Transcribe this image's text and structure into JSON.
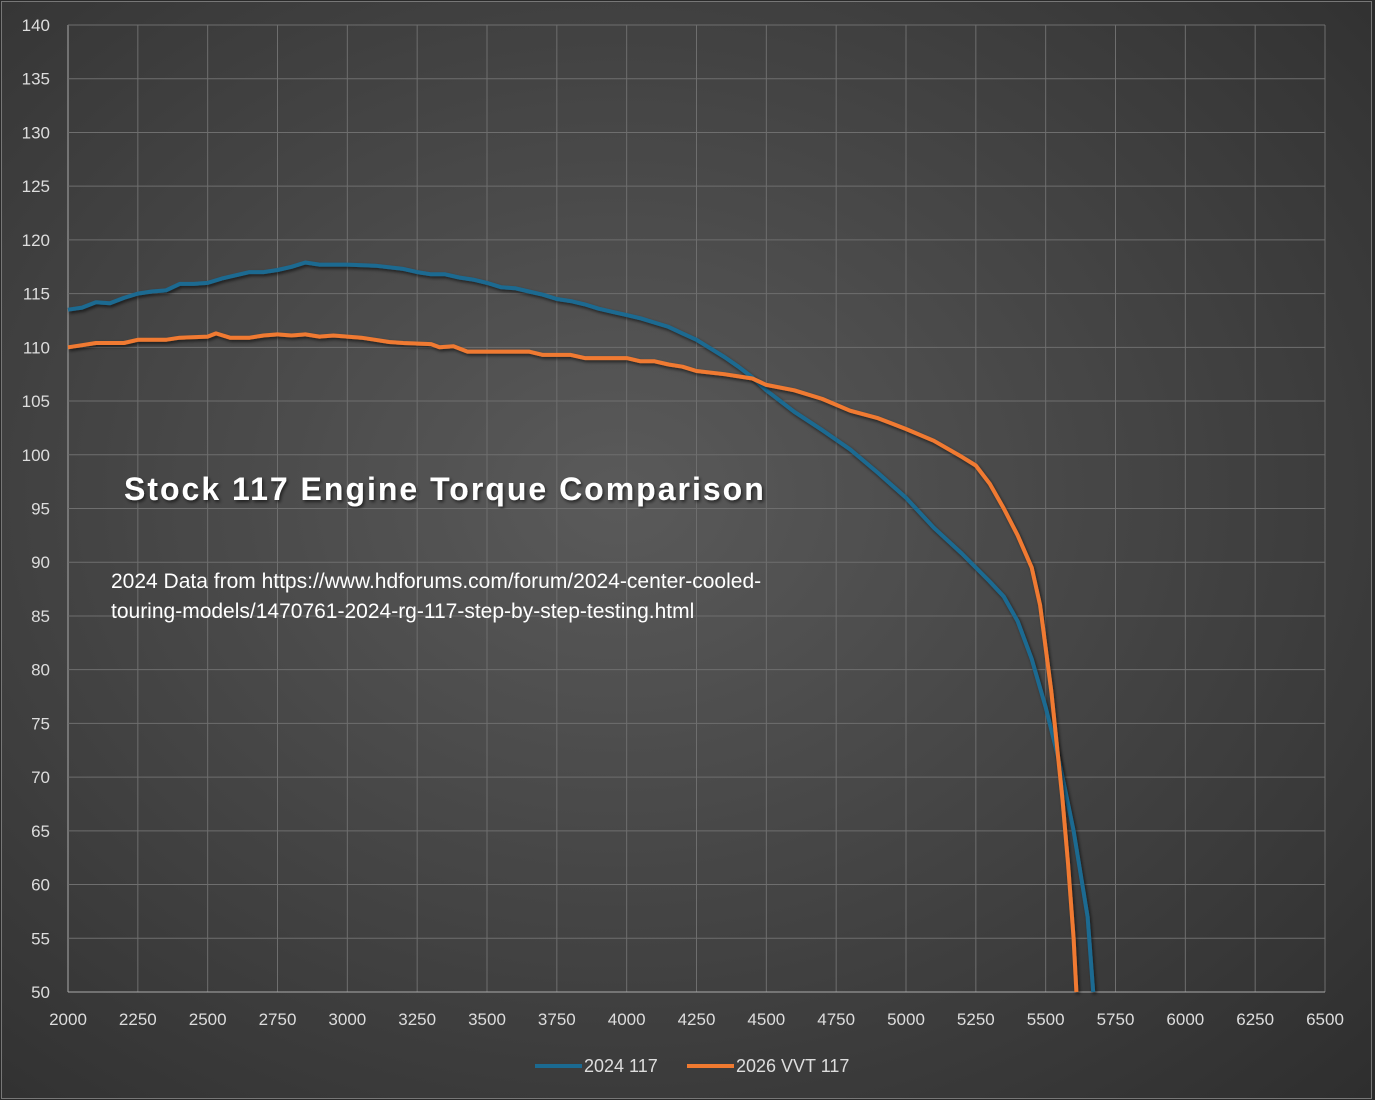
{
  "chart_data": {
    "type": "line",
    "title": "Stock 117 Engine Torque Comparison",
    "annotation": "2024 Data from https://www.hdforums.com/forum/2024-center-cooled-touring-models/1470761-2024-rg-117-step-by-step-testing.html",
    "annotation_lines": [
      "2024 Data from https://www.hdforums.com/forum/2024-center-cooled-",
      "touring-models/1470761-2024-rg-117-step-by-step-testing.html"
    ],
    "xlabel": "",
    "ylabel": "",
    "xlim": [
      2000,
      6500
    ],
    "ylim": [
      50,
      140
    ],
    "xticks": [
      2000,
      2250,
      2500,
      2750,
      3000,
      3250,
      3500,
      3750,
      4000,
      4250,
      4500,
      4750,
      5000,
      5250,
      5500,
      5750,
      6000,
      6250,
      6500
    ],
    "yticks": [
      50,
      55,
      60,
      65,
      70,
      75,
      80,
      85,
      90,
      95,
      100,
      105,
      110,
      115,
      120,
      125,
      130,
      135,
      140
    ],
    "grid": true,
    "legend": "bottom",
    "series": [
      {
        "name": "2024 117",
        "color": "#1b6a91",
        "x": [
          2000,
          2050,
          2100,
          2150,
          2200,
          2250,
          2300,
          2350,
          2400,
          2450,
          2500,
          2550,
          2600,
          2650,
          2700,
          2750,
          2800,
          2850,
          2900,
          3000,
          3100,
          3200,
          3250,
          3300,
          3350,
          3400,
          3450,
          3500,
          3550,
          3600,
          3650,
          3700,
          3750,
          3800,
          3850,
          3900,
          3950,
          4000,
          4050,
          4100,
          4150,
          4200,
          4250,
          4300,
          4350,
          4400,
          4450,
          4500,
          4600,
          4700,
          4800,
          4900,
          5000,
          5100,
          5200,
          5300,
          5350,
          5400,
          5450,
          5500,
          5550,
          5600,
          5650,
          5670
        ],
        "y": [
          113.5,
          113.7,
          114.2,
          114.1,
          114.6,
          115,
          115.2,
          115.3,
          115.9,
          115.9,
          116,
          116.4,
          116.7,
          117,
          117,
          117.2,
          117.5,
          117.9,
          117.7,
          117.7,
          117.6,
          117.3,
          117,
          116.8,
          116.8,
          116.5,
          116.3,
          116,
          115.6,
          115.5,
          115.2,
          114.9,
          114.5,
          114.3,
          114,
          113.6,
          113.3,
          113,
          112.7,
          112.3,
          111.9,
          111.3,
          110.7,
          109.9,
          109.1,
          108.2,
          107.2,
          106,
          104,
          102.3,
          100.5,
          98.3,
          96,
          93.2,
          90.8,
          88.2,
          86.8,
          84.5,
          81,
          76.5,
          71.3,
          65,
          57,
          50
        ]
      },
      {
        "name": "2026 VVT 117",
        "color": "#f07a30",
        "x": [
          2000,
          2050,
          2100,
          2200,
          2250,
          2350,
          2400,
          2500,
          2530,
          2580,
          2650,
          2700,
          2750,
          2800,
          2850,
          2900,
          2950,
          3000,
          3050,
          3100,
          3150,
          3200,
          3300,
          3330,
          3380,
          3430,
          3500,
          3650,
          3700,
          3800,
          3850,
          4000,
          4050,
          4100,
          4150,
          4200,
          4250,
          4350,
          4450,
          4500,
          4600,
          4700,
          4800,
          4900,
          5000,
          5100,
          5200,
          5250,
          5300,
          5350,
          5400,
          5450,
          5480,
          5520,
          5560,
          5580,
          5600,
          5610
        ],
        "y": [
          110,
          110.2,
          110.4,
          110.4,
          110.7,
          110.7,
          110.9,
          111,
          111.3,
          110.9,
          110.9,
          111.1,
          111.2,
          111.1,
          111.2,
          111,
          111.1,
          111,
          110.9,
          110.7,
          110.5,
          110.4,
          110.3,
          110,
          110.1,
          109.6,
          109.6,
          109.6,
          109.3,
          109.3,
          109,
          109,
          108.7,
          108.7,
          108.4,
          108.2,
          107.8,
          107.5,
          107.1,
          106.5,
          106,
          105.2,
          104.1,
          103.4,
          102.4,
          101.3,
          99.8,
          99,
          97.3,
          95,
          92.5,
          89.5,
          86,
          78,
          68,
          62,
          55,
          50
        ]
      }
    ]
  }
}
